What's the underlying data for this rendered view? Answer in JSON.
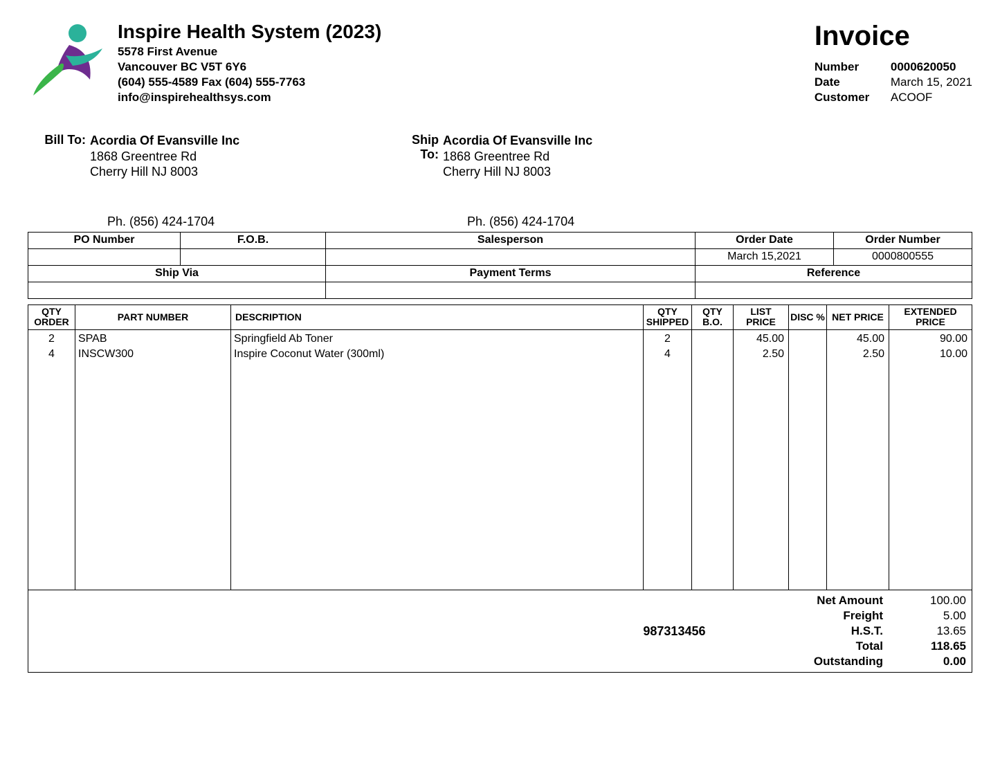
{
  "company": {
    "name": "Inspire Health System (2023)",
    "address1": "5578 First Avenue",
    "city_line": "Vancouver  BC     V5T 6Y6",
    "phone_line": " (604) 555-4589      Fax (604) 555-7763",
    "email": "info@inspirehealthsys.com"
  },
  "invoice": {
    "title": "Invoice",
    "number_label": "Number",
    "number": "0000620050",
    "date_label": "Date",
    "date": "March 15, 2021",
    "customer_label": "Customer",
    "customer": "ACOOF"
  },
  "bill_to": {
    "label": "Bill To:",
    "name": "Acordia Of Evansville Inc",
    "line1": "1868 Greentree Rd",
    "line2": "Cherry Hill  NJ   8003",
    "phone": "Ph. (856) 424-1704"
  },
  "ship_to": {
    "label": "Ship To:",
    "name": "Acordia Of Evansville Inc",
    "line1": "1868 Greentree Rd",
    "line2": "Cherry Hill  NJ   8003",
    "phone": "Ph. (856) 424-1704"
  },
  "meta": {
    "headers1": {
      "po": "PO Number",
      "fob": "F.O.B.",
      "sales": "Salesperson",
      "odate": "Order Date",
      "onum": "Order Number"
    },
    "values1": {
      "po": "",
      "fob": "",
      "sales": "",
      "odate": "March 15,2021",
      "onum": "0000800555"
    },
    "headers2": {
      "ship": "Ship Via",
      "terms": "Payment Terms",
      "ref": "Reference"
    },
    "values2": {
      "ship": "",
      "terms": "",
      "ref": ""
    }
  },
  "line_headers": {
    "qty_order": "QTY ORDER",
    "part": "PART NUMBER",
    "desc": "DESCRIPTION",
    "qty_ship": "QTY SHIPPED",
    "qty_bo": "QTY B.O.",
    "list": "LIST PRICE",
    "disc": "DISC %",
    "net": "NET PRICE",
    "ext": "EXTENDED PRICE"
  },
  "lines": [
    {
      "qty_order": "2",
      "part": "SPAB",
      "desc": "Springfield Ab Toner",
      "qty_ship": "2",
      "qty_bo": "",
      "list": "45.00",
      "disc": "",
      "net": "45.00",
      "ext": "90.00"
    },
    {
      "qty_order": "4",
      "part": "INSCW300",
      "desc": "Inspire Coconut Water (300ml)",
      "qty_ship": "4",
      "qty_bo": "",
      "list": "2.50",
      "disc": "",
      "net": "2.50",
      "ext": "10.00"
    }
  ],
  "totals": {
    "ref": "987313456",
    "rows": [
      {
        "label": "Net Amount",
        "value": "100.00",
        "bold": false
      },
      {
        "label": "Freight",
        "value": "5.00",
        "bold": false
      },
      {
        "label": "H.S.T.",
        "value": "13.65",
        "bold": false
      },
      {
        "label": "Total",
        "value": "118.65",
        "bold": true
      },
      {
        "label": "Outstanding",
        "value": "0.00",
        "bold": true
      }
    ]
  },
  "colors": {
    "logo_teal": "#2bb29a",
    "logo_purple": "#6e2c8f",
    "logo_green": "#3bb54a"
  }
}
